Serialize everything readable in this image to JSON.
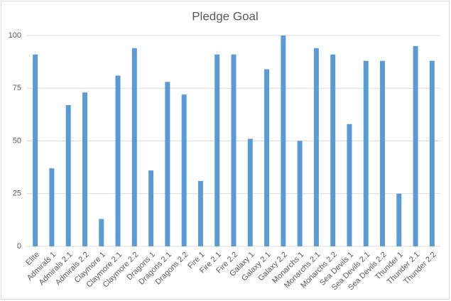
{
  "chart_data": {
    "type": "bar",
    "title": "Pledge Goal",
    "categories": [
      "Elite",
      "Admirals 1",
      "Admirals 2.1",
      "Admirals 2.2",
      "Claymore 1",
      "Claymore 2.1",
      "Claymore 2.2",
      "Dragons 1",
      "Dragons 2.1",
      "Dragons 2.2",
      "Fire 1",
      "Fire 2.1",
      "Fire 2.2",
      "Galaxy 1",
      "Galaxy 2.1",
      "Galaxy 2.2",
      "Monarchs 1",
      "Monarchs 2.1",
      "Monarchs 2.2",
      "Sea Devils 1",
      "Sea Devils 2.1",
      "Sea Devils 2.2",
      "Thunder 1",
      "Thunder 2.1",
      "Thunder 2.2"
    ],
    "values": [
      91,
      37,
      67,
      73,
      13,
      81,
      94,
      36,
      78,
      72,
      31,
      91,
      91,
      51,
      84,
      100,
      50,
      94,
      91,
      58,
      88,
      88,
      25,
      95,
      88
    ],
    "color": "#5b9bd5",
    "ylim": [
      0,
      100
    ],
    "yticks": [
      0,
      25,
      50,
      75,
      100
    ],
    "grid": true
  }
}
